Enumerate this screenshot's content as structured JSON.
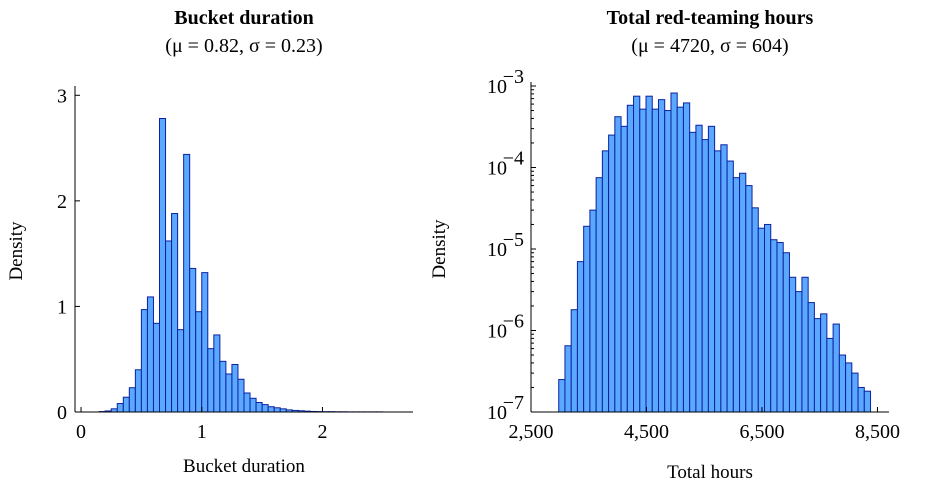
{
  "chart_data": [
    {
      "type": "bar",
      "title": "Bucket duration",
      "subtitle": "(μ = 0.82, σ = 0.23)",
      "xlabel": "Bucket duration",
      "ylabel": "Density",
      "xlim": [
        -0.05,
        2.75
      ],
      "ylim": [
        0,
        3.05
      ],
      "yscale": "linear",
      "xticks": [
        0,
        1,
        2
      ],
      "xtick_labels": [
        "0",
        "1",
        "2"
      ],
      "yticks": [
        0,
        1,
        2,
        3
      ],
      "ytick_labels": [
        "0",
        "1",
        "2",
        "3"
      ],
      "bin_width": 0.05,
      "bin_start": 0.15,
      "values": [
        0.004,
        0.01,
        0.03,
        0.08,
        0.14,
        0.23,
        0.4,
        0.97,
        1.09,
        0.84,
        2.78,
        1.62,
        1.88,
        0.78,
        2.44,
        1.36,
        0.95,
        1.32,
        0.6,
        0.73,
        0.48,
        0.36,
        0.45,
        0.31,
        0.18,
        0.13,
        0.09,
        0.07,
        0.05,
        0.04,
        0.03,
        0.02,
        0.015,
        0.012,
        0.008,
        0.005,
        0.004,
        0.003,
        0.003,
        0.002,
        0.002,
        0.001,
        0.001,
        0.001,
        0.001,
        0.001,
        0.001
      ],
      "grid": false,
      "colors": {
        "fill": "#5aa8ff",
        "stroke": "#0c22a0"
      }
    },
    {
      "type": "bar",
      "title": "Total red-teaming hours",
      "subtitle": "(μ = 4720, σ = 604)",
      "xlabel": "Total hours",
      "ylabel": "Density",
      "xlim": [
        2500,
        8700
      ],
      "ylim": [
        1e-07,
        0.001
      ],
      "yscale": "log",
      "xticks": [
        2500,
        4500,
        6500,
        8500
      ],
      "xtick_labels": [
        "2,500",
        "4,500",
        "6,500",
        "8,500"
      ],
      "yticks": [
        1e-07,
        1e-06,
        1e-05,
        0.0001,
        0.001
      ],
      "ytick_labels": [
        "10",
        "10",
        "10",
        "10",
        "10"
      ],
      "ytick_exponents": [
        "−7",
        "−6",
        "−5",
        "−4",
        "−3"
      ],
      "bin_width": 108,
      "bin_start": 2980,
      "values": [
        2.5e-07,
        6.5e-07,
        1.8e-06,
        7e-06,
        1.9e-05,
        3e-05,
        7.5e-05,
        0.00016,
        0.00025,
        0.00042,
        0.00032,
        0.00058,
        0.00075,
        0.00052,
        0.00075,
        0.00052,
        0.00068,
        0.0005,
        0.00082,
        0.00055,
        0.00062,
        0.00027,
        0.00033,
        0.00022,
        0.00032,
        0.00016,
        0.00019,
        0.00012,
        7.5e-05,
        8.5e-05,
        6e-05,
        3.2e-05,
        1.8e-05,
        2e-05,
        1.3e-05,
        1.2e-05,
        9e-06,
        4.5e-06,
        3e-06,
        4.5e-06,
        2.2e-06,
        1.4e-06,
        1.6e-06,
        8e-07,
        1.2e-06,
        5e-07,
        4e-07,
        3e-07,
        2e-07,
        1.8e-07
      ],
      "grid": false,
      "colors": {
        "fill": "#5aa8ff",
        "stroke": "#0c22a0"
      }
    }
  ]
}
